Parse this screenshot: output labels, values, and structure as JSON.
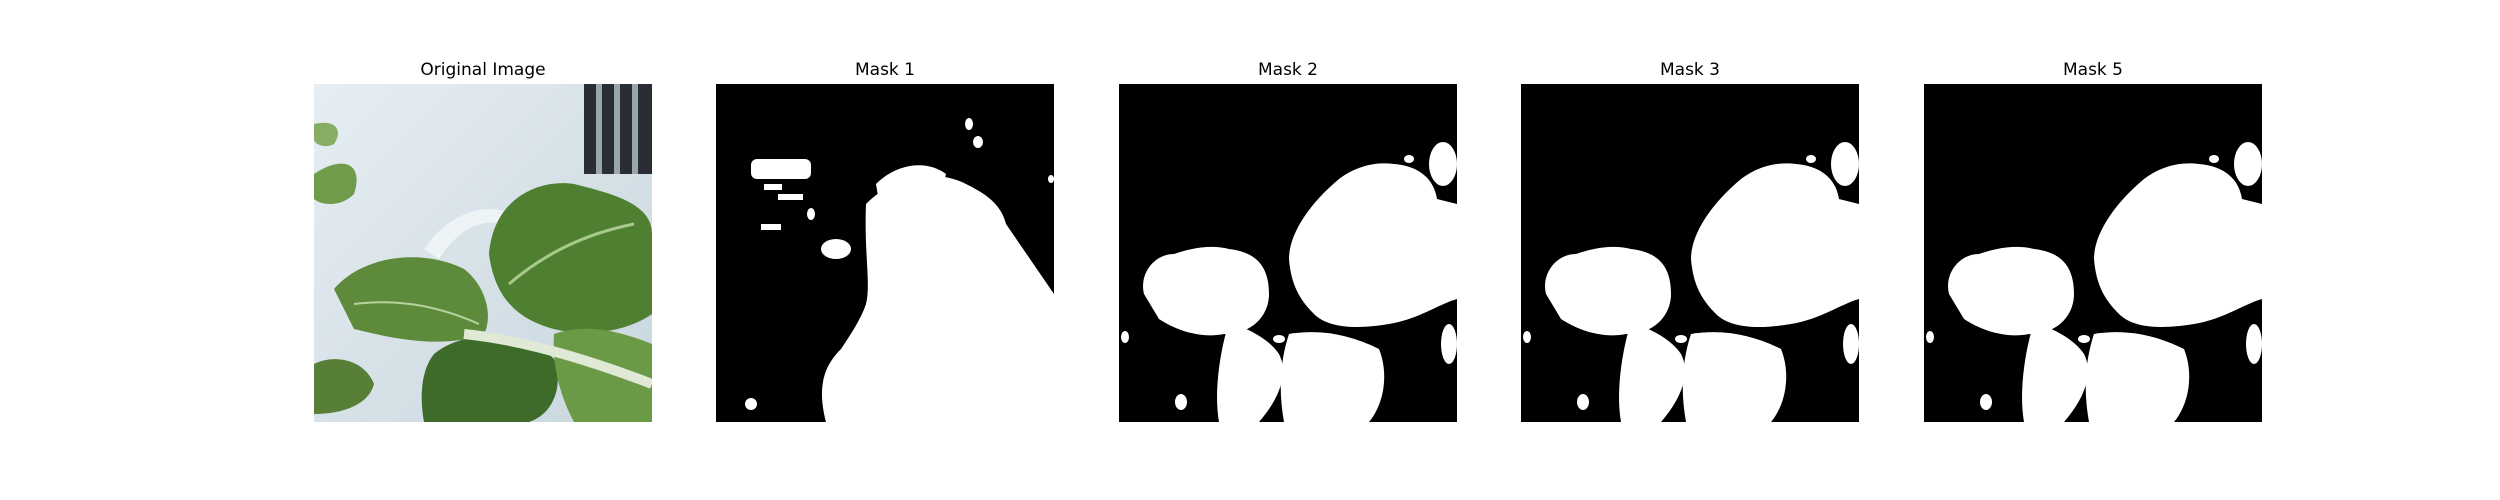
{
  "panels": [
    {
      "title": "Original Image",
      "kind": "photo"
    },
    {
      "title": "Mask 1",
      "kind": "mask",
      "variant": "coarse"
    },
    {
      "title": "Mask 2",
      "kind": "mask",
      "variant": "smooth"
    },
    {
      "title": "Mask 3",
      "kind": "mask",
      "variant": "smooth"
    },
    {
      "title": "Mask 5",
      "kind": "mask",
      "variant": "smooth"
    }
  ],
  "colors": {
    "mask_bg": "#000000",
    "mask_fg": "#ffffff",
    "leaf_dark": "#3f6b2a",
    "leaf_light": "#7fb35a",
    "bg_light": "#d7e1e6"
  }
}
